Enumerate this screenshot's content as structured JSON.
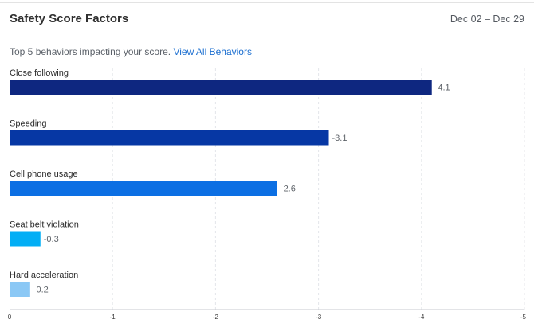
{
  "card": {
    "title": "Safety Score Factors",
    "date_range": "Dec 02 – Dec 29",
    "subtitle_text": "Top 5 behaviors impacting your score.",
    "view_all_link": "View All Behaviors"
  },
  "chart_data": {
    "type": "bar",
    "orientation": "horizontal",
    "categories": [
      "Close following",
      "Speeding",
      "Cell phone usage",
      "Seat belt violation",
      "Hard acceleration"
    ],
    "values": [
      -4.1,
      -3.1,
      -2.6,
      -0.3,
      -0.2
    ],
    "value_labels": [
      "-4.1",
      "-3.1",
      "-2.6",
      "-0.3",
      "-0.2"
    ],
    "colors": [
      "#0e2780",
      "#0637a4",
      "#0c6fe3",
      "#02aef5",
      "#8bc8f5"
    ],
    "xlim": [
      0,
      -5
    ],
    "ticks": [
      0,
      -1,
      -2,
      -3,
      -4,
      -5
    ],
    "tick_labels": [
      "0",
      "-1",
      "-2",
      "-3",
      "-4",
      "-5"
    ],
    "grid": true
  }
}
